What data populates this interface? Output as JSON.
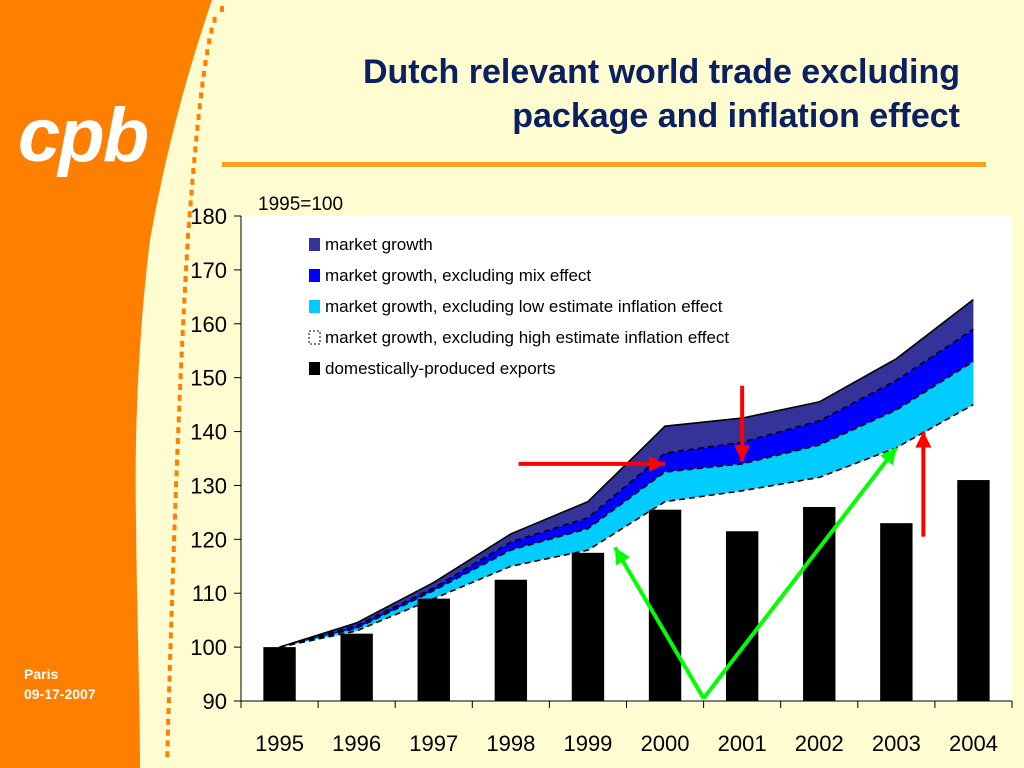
{
  "slide": {
    "title_lines": [
      "Dutch relevant world trade excluding",
      "package and inflation effect"
    ],
    "logo_text": "cpb",
    "footer_place": "Paris",
    "footer_date": "09-17-2007",
    "colors": {
      "background": "#fffcd1",
      "sidebar": "#ff7f00",
      "title": "#0a2060",
      "rule": "#f9a21c"
    }
  },
  "chart_data": {
    "type": "area",
    "note": "1995=100",
    "categories": [
      "1995",
      "1996",
      "1997",
      "1998",
      "1999",
      "2000",
      "2001",
      "2002",
      "2003",
      "2004"
    ],
    "ylim": [
      90,
      180
    ],
    "yticks": [
      90,
      100,
      110,
      120,
      130,
      140,
      150,
      160,
      170,
      180
    ],
    "series": [
      {
        "name": "market growth",
        "color": "#333399",
        "values": [
          100,
          104.5,
          112,
          121,
          127,
          141,
          142.5,
          145.5,
          153.5,
          164.5
        ]
      },
      {
        "name": "market growth, excluding mix effect",
        "color": "#0000ff",
        "values": [
          100,
          104,
          111,
          119.5,
          124,
          136,
          138,
          142,
          149.5,
          159
        ]
      },
      {
        "name": "market growth, excluding low estimate inflation effect",
        "color": "#00ccff",
        "values": [
          100,
          103.5,
          110.5,
          118,
          122,
          132.5,
          134,
          137.5,
          144,
          153
        ]
      },
      {
        "name": "market growth, excluding high estimate inflation effect",
        "color": "#ffffff",
        "values": [
          100,
          103,
          109,
          115,
          118,
          127,
          129,
          131.5,
          137,
          145
        ]
      }
    ],
    "bars": {
      "name": "domestically-produced exports",
      "color": "#000000",
      "values": [
        100,
        102.5,
        109,
        112.5,
        117.5,
        125.5,
        121.5,
        126,
        123,
        131
      ]
    },
    "legend_position": "top-left",
    "annotations": [
      {
        "kind": "arrow",
        "color": "#ff0000",
        "from": [
          "1998.1",
          134
        ],
        "to": [
          "2000",
          134
        ]
      },
      {
        "kind": "arrow",
        "color": "#ff0000",
        "from": [
          "2001",
          148.5
        ],
        "to": [
          "2001",
          134.5
        ]
      },
      {
        "kind": "arrow",
        "color": "#ff0000",
        "from": [
          "2003.35",
          120.5
        ],
        "to": [
          "2003.35",
          140
        ]
      },
      {
        "kind": "arrow",
        "color": "#00ff00",
        "from": [
          "2000.5",
          90.5
        ],
        "to": [
          "1999.35",
          118.5
        ]
      },
      {
        "kind": "arrow",
        "color": "#00ff00",
        "from": [
          "2000.5",
          90.5
        ],
        "to": [
          "2003",
          137
        ]
      }
    ]
  }
}
